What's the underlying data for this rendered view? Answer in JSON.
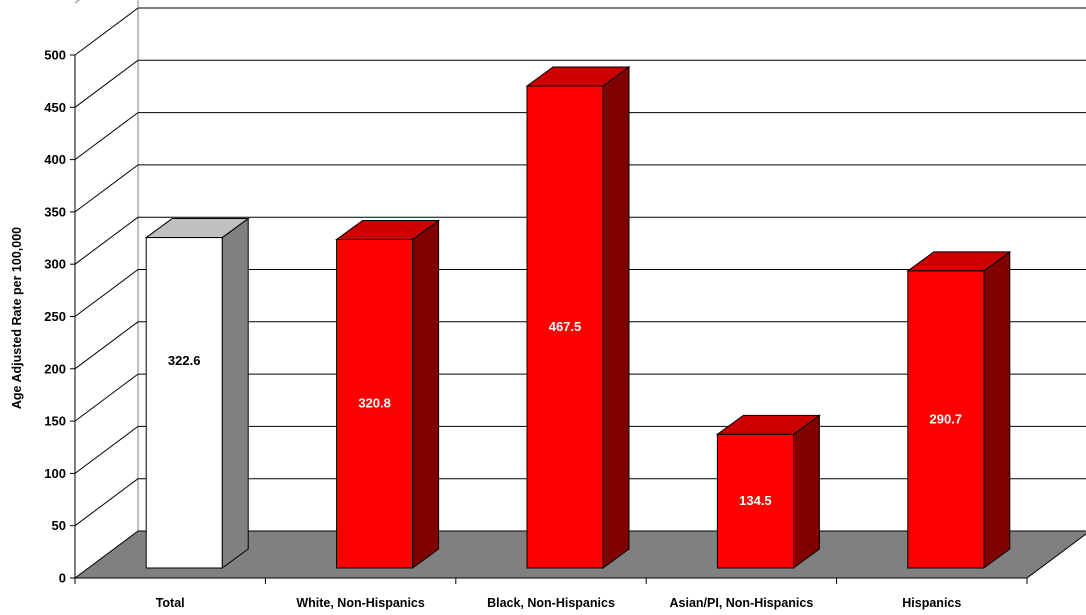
{
  "chart_data": {
    "type": "bar",
    "categories": [
      "Total",
      "White, Non-Hispanics",
      "Black, Non-Hispanics",
      "Asian/PI, Non-Hispanics",
      "Hispanics"
    ],
    "values": [
      322.6,
      320.8,
      467.5,
      134.5,
      290.7
    ],
    "data_labels": [
      "322.6",
      "320.8",
      "467.5",
      "134.5",
      "290.7"
    ],
    "ylabel": "Age Adjusted Rate per 100,000",
    "ylim": [
      0,
      500
    ],
    "yticks": [
      "0",
      "50",
      "100",
      "150",
      "200",
      "250",
      "300",
      "350",
      "400",
      "450",
      "500"
    ],
    "grid": true,
    "style": "3d",
    "colors": {
      "highlight_front": "#ffffff",
      "highlight_top": "#c0c0c0",
      "highlight_side": "#808080",
      "bar_front": "#ff0000",
      "bar_top": "#cc0000",
      "bar_side": "#800000",
      "floor": "#808080",
      "label_on_highlight": "#000000",
      "label_on_bar": "#ffffff"
    }
  }
}
